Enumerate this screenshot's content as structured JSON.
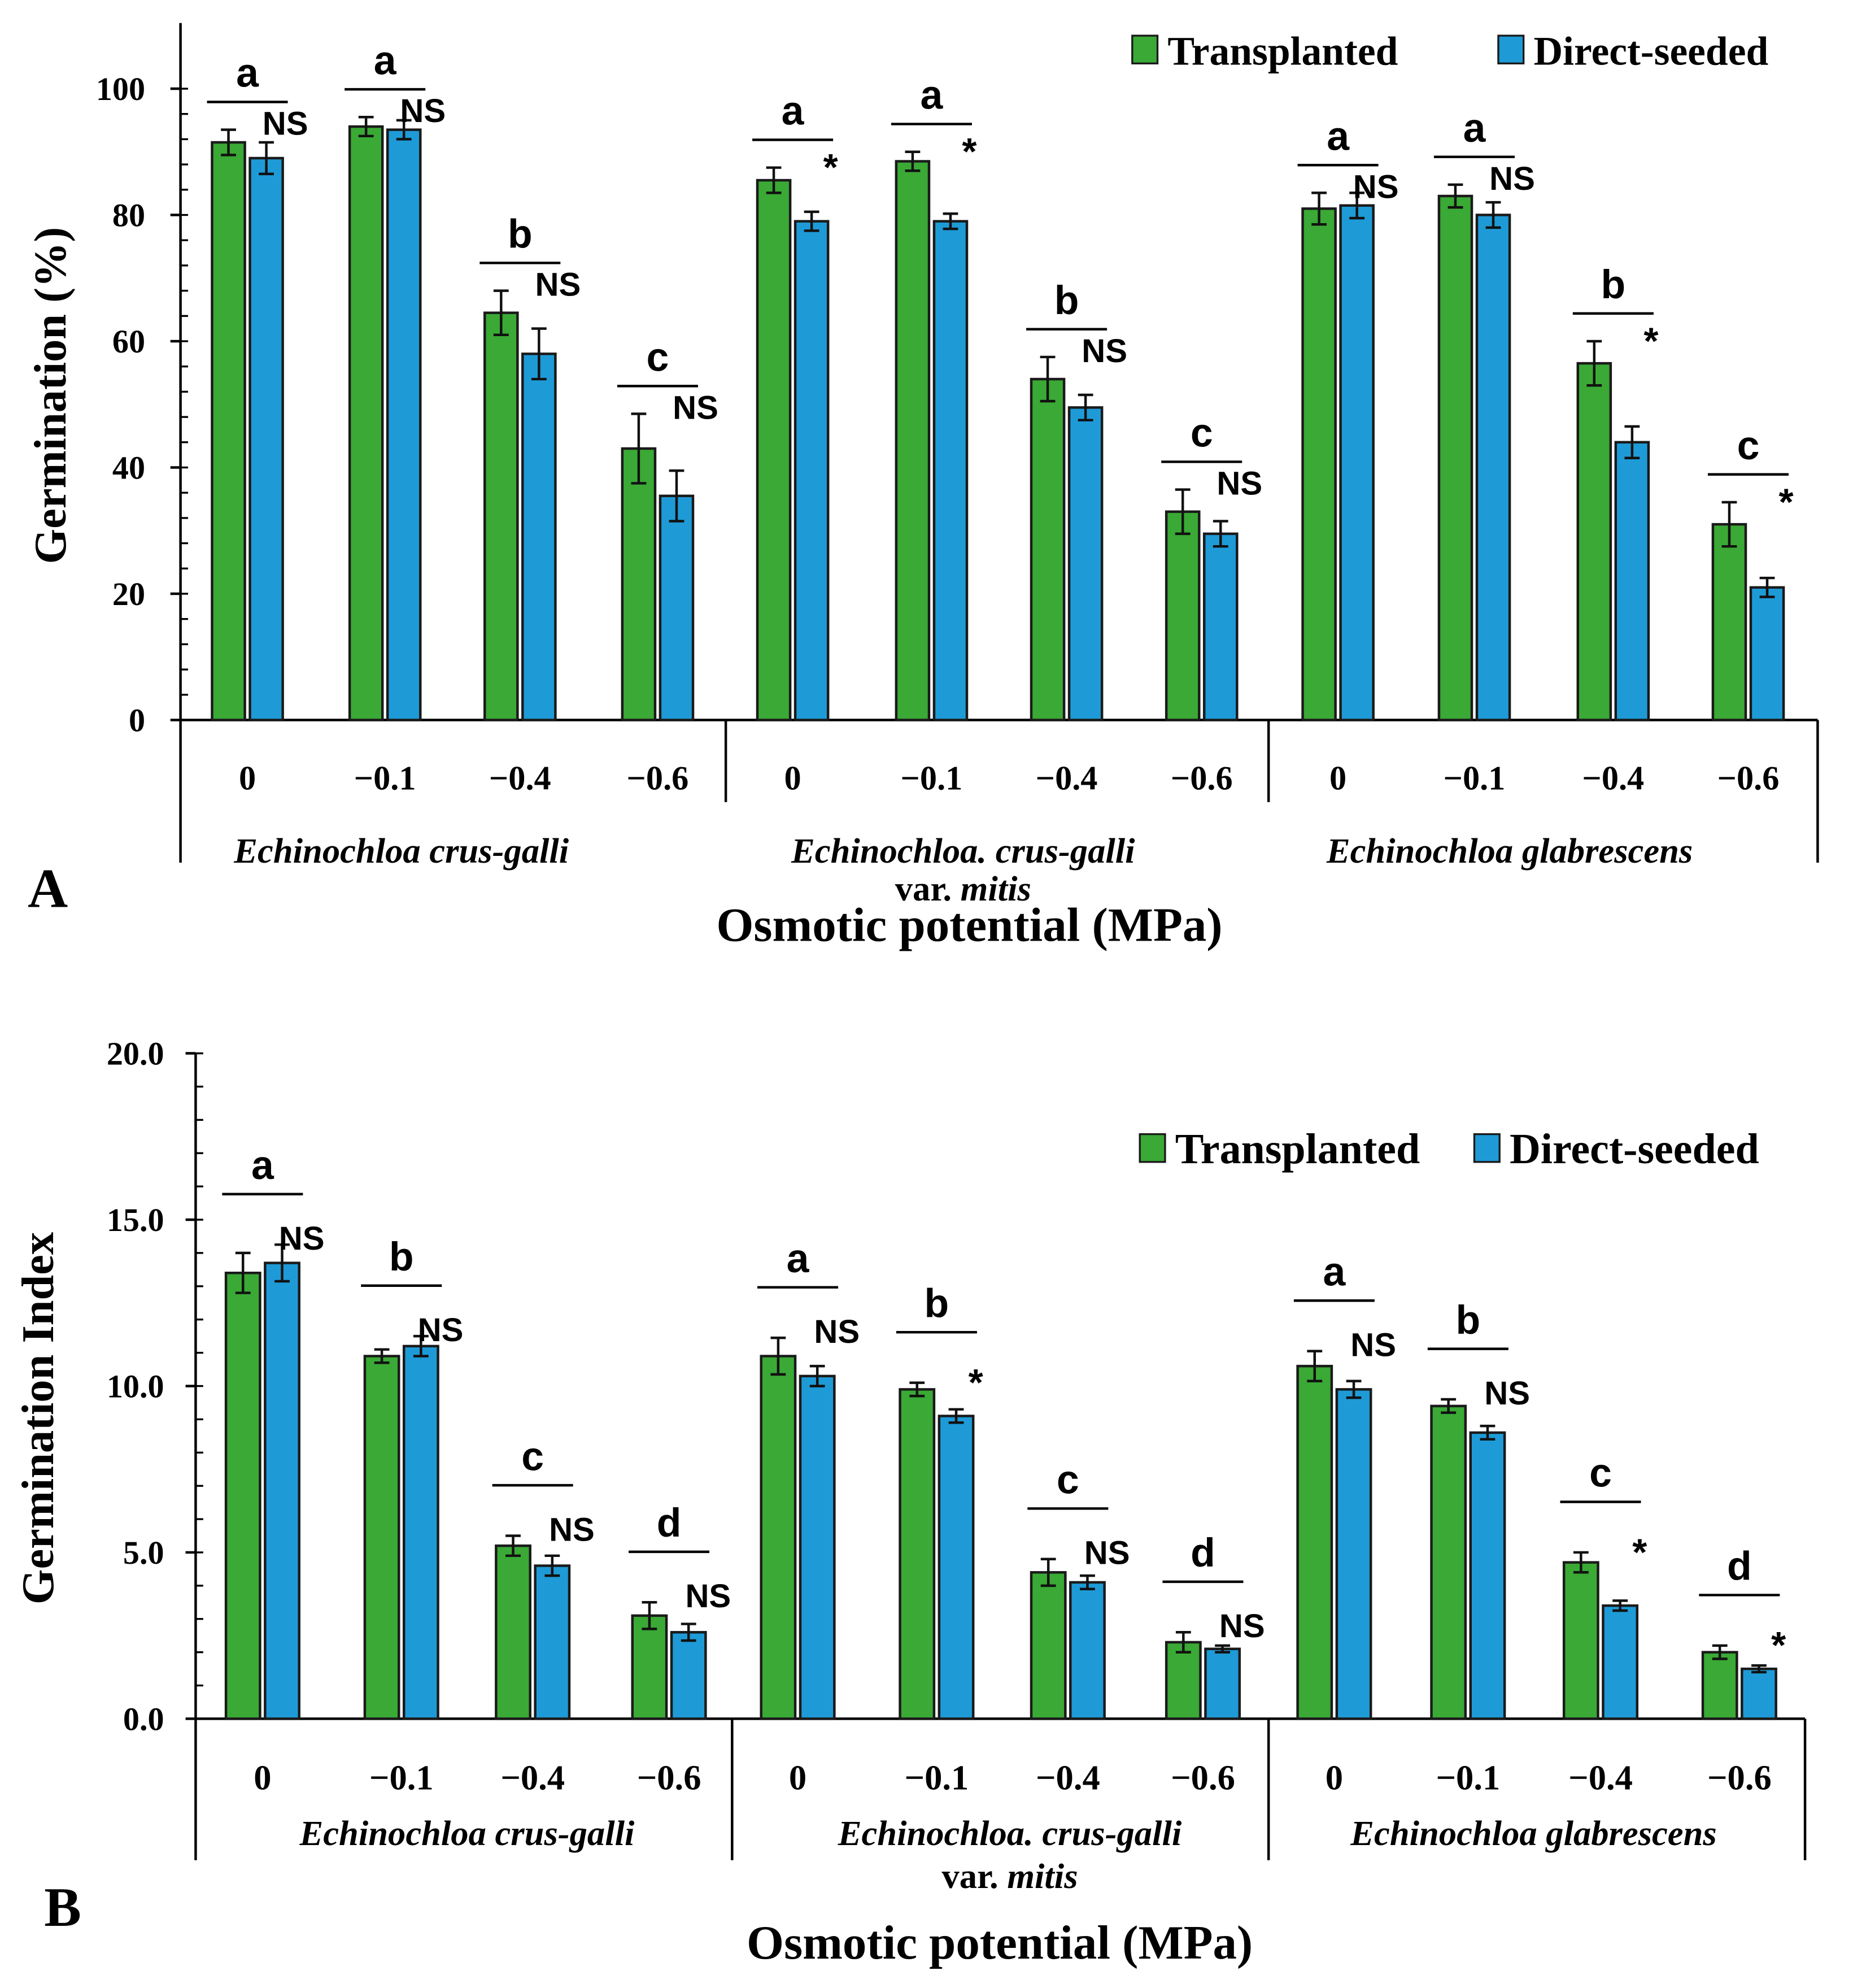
{
  "colors": {
    "transplanted": "#3aa935",
    "direct": "#1e9bd7",
    "outline": "#1a1a1a"
  },
  "chart_data": [
    {
      "panel": "A",
      "type": "bar",
      "ylabel": "Germination (%)",
      "xlabel": "Osmotic   potential   (MPa)",
      "ylim": [
        0,
        100
      ],
      "yticks": [
        "0",
        "20",
        "40",
        "60",
        "80",
        "100"
      ],
      "yticks_values": [
        0,
        20,
        40,
        60,
        80,
        100
      ],
      "legend": [
        "Transplanted",
        "Direct-seeded"
      ],
      "legend_position": "top-right",
      "groups": [
        {
          "name": "Echinochloa crus-galli",
          "name2": "",
          "name2_italic": "",
          "categories": [
            "0",
            "−0.1",
            "−0.4",
            "−0.6"
          ],
          "transplanted": [
            91.5,
            94,
            64.5,
            43
          ],
          "transplanted_err": [
            2,
            1.5,
            3.5,
            5.5
          ],
          "direct": [
            89,
            93.5,
            58,
            35.5
          ],
          "direct_err": [
            2.5,
            1.5,
            4,
            4
          ],
          "letters": [
            "a",
            "a",
            "b",
            "c"
          ],
          "significance": [
            "NS",
            "NS",
            "NS",
            "NS"
          ]
        },
        {
          "name": "Echinochloa. crus-galli",
          "name2": "var. ",
          "name2_italic": "mitis",
          "categories": [
            "0",
            "−0.1",
            "−0.4",
            "−0.6"
          ],
          "transplanted": [
            85.5,
            88.5,
            54,
            33
          ],
          "transplanted_err": [
            2,
            1.5,
            3.5,
            3.5
          ],
          "direct": [
            79,
            79,
            49.5,
            29.5
          ],
          "direct_err": [
            1.5,
            1.2,
            2,
            2
          ],
          "letters": [
            "a",
            "a",
            "b",
            "c"
          ],
          "significance": [
            "*",
            "*",
            "NS",
            "NS"
          ]
        },
        {
          "name": "Echinochloa glabrescens",
          "name2": "",
          "name2_italic": "",
          "categories": [
            "0",
            "−0.1",
            "−0.4",
            "−0.6"
          ],
          "transplanted": [
            81,
            83,
            56.5,
            31
          ],
          "transplanted_err": [
            2.5,
            1.8,
            3.5,
            3.5
          ],
          "direct": [
            81.5,
            80,
            44,
            21
          ],
          "direct_err": [
            2,
            2,
            2.5,
            1.5
          ],
          "letters": [
            "a",
            "a",
            "b",
            "c"
          ],
          "significance": [
            "NS",
            "NS",
            "*",
            "*"
          ]
        }
      ]
    },
    {
      "panel": "B",
      "type": "bar",
      "ylabel": "Germination Index",
      "xlabel": "Osmotic   potential   (MPa)",
      "ylim": [
        0,
        20
      ],
      "yticks": [
        "0.0",
        "5.0",
        "10.0",
        "15.0",
        "20.0"
      ],
      "yticks_values": [
        0,
        5,
        10,
        15,
        20
      ],
      "legend": [
        "Transplanted",
        "Direct-seeded"
      ],
      "legend_position": "top-right",
      "groups": [
        {
          "name": "Echinochloa crus-galli",
          "name2": "",
          "name2_italic": "",
          "categories": [
            "0",
            "−0.1",
            "−0.4",
            "−0.6"
          ],
          "transplanted": [
            13.4,
            10.9,
            5.2,
            3.1
          ],
          "transplanted_err": [
            0.6,
            0.2,
            0.3,
            0.4
          ],
          "direct": [
            13.7,
            11.2,
            4.6,
            2.6
          ],
          "direct_err": [
            0.55,
            0.3,
            0.3,
            0.25
          ],
          "letters": [
            "a",
            "b",
            "c",
            "d"
          ],
          "significance": [
            "NS",
            "NS",
            "NS",
            "NS"
          ]
        },
        {
          "name": "Echinochloa. crus-galli",
          "name2": "var. ",
          "name2_italic": "mitis",
          "categories": [
            "0",
            "−0.1",
            "−0.4",
            "−0.6"
          ],
          "transplanted": [
            10.9,
            9.9,
            4.4,
            2.3
          ],
          "transplanted_err": [
            0.55,
            0.2,
            0.4,
            0.3
          ],
          "direct": [
            10.3,
            9.1,
            4.1,
            2.1
          ],
          "direct_err": [
            0.3,
            0.2,
            0.2,
            0.1
          ],
          "letters": [
            "a",
            "b",
            "c",
            "d"
          ],
          "significance": [
            "NS",
            "*",
            "NS",
            "NS"
          ]
        },
        {
          "name": "Echinochloa glabrescens",
          "name2": "",
          "name2_italic": "",
          "categories": [
            "0",
            "−0.1",
            "−0.4",
            "−0.6"
          ],
          "transplanted": [
            10.6,
            9.4,
            4.7,
            2.0
          ],
          "transplanted_err": [
            0.45,
            0.2,
            0.3,
            0.2
          ],
          "direct": [
            9.9,
            8.6,
            3.4,
            1.5
          ],
          "direct_err": [
            0.25,
            0.2,
            0.15,
            0.1
          ],
          "letters": [
            "a",
            "b",
            "c",
            "d"
          ],
          "significance": [
            "NS",
            "NS",
            "*",
            "*"
          ]
        }
      ]
    }
  ]
}
